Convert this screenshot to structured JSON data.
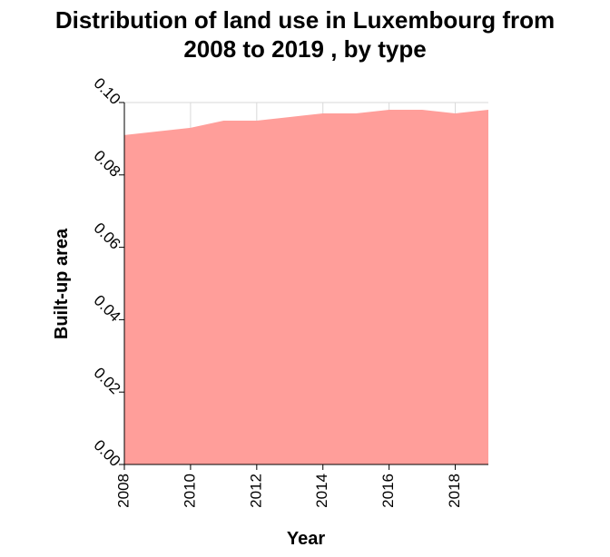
{
  "chart_data": {
    "type": "area",
    "title_lines": [
      "Distribution of land use in Luxembourg from",
      "2008 to 2019 , by type"
    ],
    "xlabel": "Year",
    "ylabel": "Built-up area",
    "xlim": [
      2008,
      2019
    ],
    "ylim": [
      0,
      0.1
    ],
    "x_ticks": [
      2008,
      2010,
      2012,
      2014,
      2016,
      2018
    ],
    "x_tick_labels": [
      "2008",
      "2010",
      "2012",
      "2014",
      "2016",
      "2018"
    ],
    "y_ticks": [
      0,
      0.02,
      0.04,
      0.06,
      0.08,
      0.1
    ],
    "y_tick_labels": [
      "0.00",
      "0.02",
      "0.04",
      "0.06",
      "0.08",
      "0.10"
    ],
    "grid": true,
    "fill_color": "#ff9e9a",
    "grid_color": "#d9d9d9",
    "x": [
      2008,
      2009,
      2010,
      2011,
      2012,
      2013,
      2014,
      2015,
      2016,
      2017,
      2018,
      2019
    ],
    "values": [
      0.091,
      0.092,
      0.093,
      0.095,
      0.095,
      0.096,
      0.097,
      0.097,
      0.098,
      0.098,
      0.097,
      0.098
    ]
  }
}
